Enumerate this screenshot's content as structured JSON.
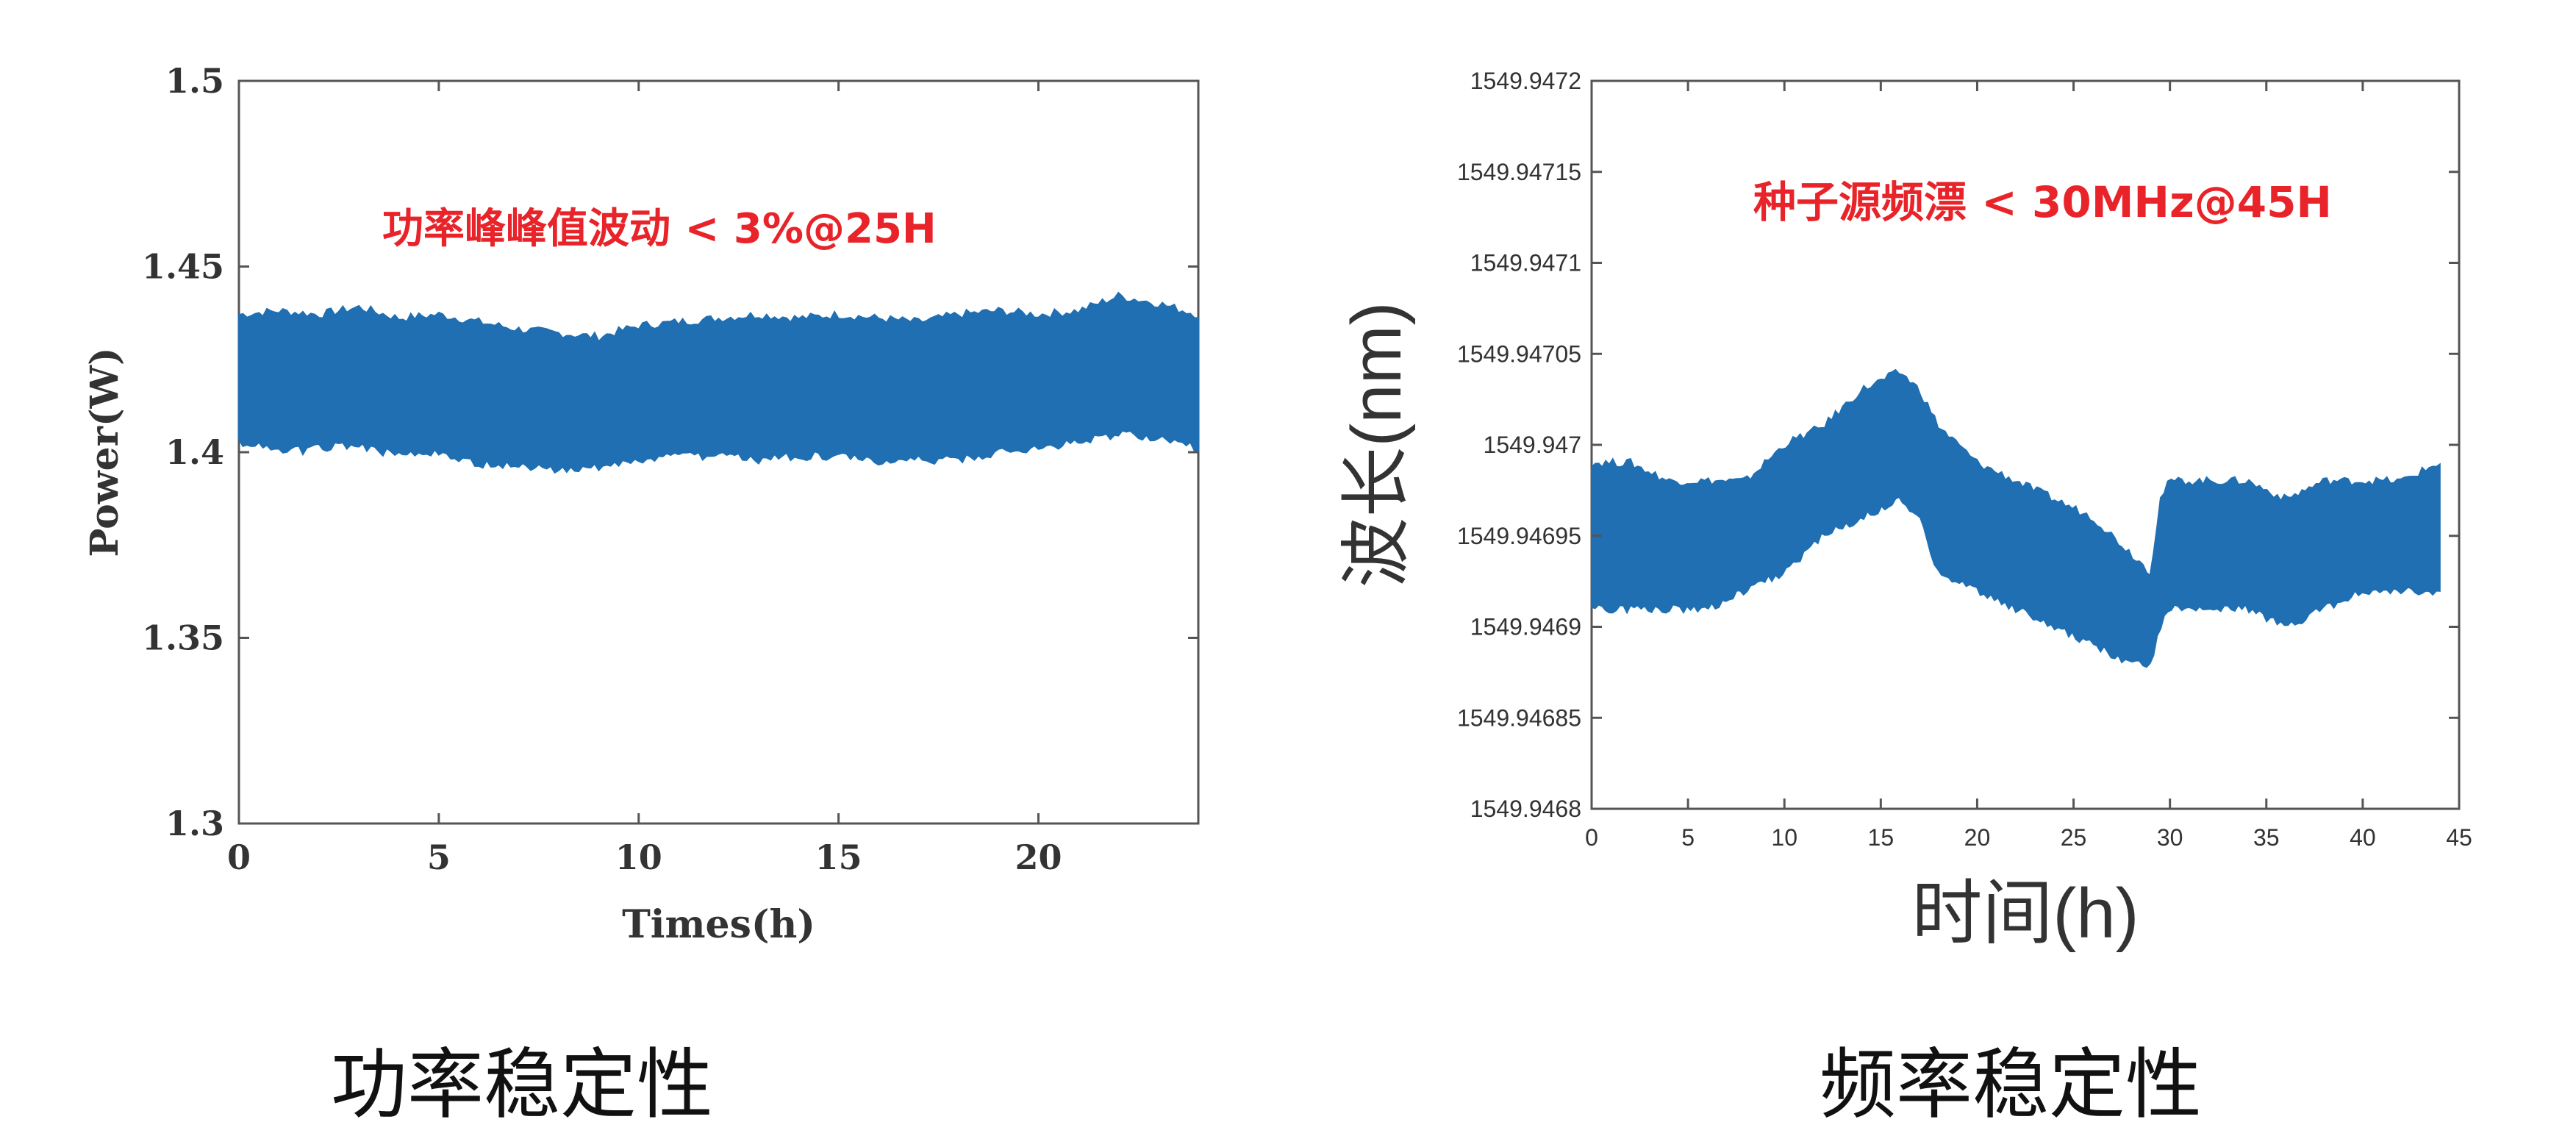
{
  "colors": {
    "series": "#1f6fb2",
    "annotation": "#e8242a",
    "axis": "#333333"
  },
  "chart_data": [
    {
      "type": "area",
      "xlabel": "Times(h)",
      "ylabel": "Power(W)",
      "annotation": "功率峰峰值波动 < 3%@25H",
      "xlim": [
        0,
        24
      ],
      "ylim": [
        1.3,
        1.5
      ],
      "xticks": [
        "0",
        "5",
        "10",
        "15",
        "20"
      ],
      "yticks": [
        "1.3",
        "1.35",
        "1.4",
        "1.45",
        "1.5"
      ],
      "caption": "功率稳定性",
      "series": [
        {
          "x": [
            0,
            1,
            2,
            3,
            4,
            5,
            6,
            7,
            8,
            9,
            10,
            11,
            12,
            13,
            14,
            15,
            16,
            17,
            18,
            19,
            20,
            21,
            22,
            23,
            24
          ],
          "upper": [
            1.437,
            1.438,
            1.437,
            1.439,
            1.436,
            1.437,
            1.435,
            1.433,
            1.432,
            1.431,
            1.434,
            1.435,
            1.436,
            1.437,
            1.436,
            1.437,
            1.436,
            1.435,
            1.437,
            1.438,
            1.437,
            1.438,
            1.442,
            1.44,
            1.437
          ],
          "lower": [
            1.403,
            1.4,
            1.401,
            1.402,
            1.399,
            1.4,
            1.397,
            1.396,
            1.395,
            1.396,
            1.398,
            1.399,
            1.399,
            1.398,
            1.399,
            1.399,
            1.397,
            1.398,
            1.398,
            1.4,
            1.401,
            1.403,
            1.405,
            1.404,
            1.401
          ]
        }
      ]
    },
    {
      "type": "area",
      "xlabel": "时间(h)",
      "ylabel": "波长(nm)",
      "annotation": "种子源频漂 < 30MHz@45H",
      "xlim": [
        0,
        45
      ],
      "ylim": [
        1549.9468,
        1549.9472
      ],
      "xticks": [
        "0",
        "5",
        "10",
        "15",
        "20",
        "25",
        "30",
        "35",
        "40",
        "45"
      ],
      "yticks": [
        "1549.9468",
        "1549.94685",
        "1549.9469",
        "1549.94695",
        "1549.947",
        "1549.94705",
        "1549.9471",
        "1549.94715",
        "1549.9472"
      ],
      "caption": "频率稳定性",
      "series": [
        {
          "x": [
            0,
            2,
            4,
            6,
            8,
            10,
            12,
            14,
            16,
            17,
            18,
            20,
            22,
            24,
            26,
            28,
            29,
            29.5,
            30,
            32,
            34,
            36,
            38,
            40,
            42,
            44
          ],
          "upper": [
            1549.94699,
            1549.94699,
            1549.94698,
            1549.94698,
            1549.94698,
            1549.947,
            1549.94701,
            1549.94703,
            1549.94704,
            1549.94703,
            1549.94701,
            1549.94699,
            1549.94698,
            1549.94697,
            1549.94696,
            1549.94694,
            1549.94693,
            1549.94697,
            1549.94698,
            1549.94698,
            1549.94698,
            1549.94697,
            1549.94698,
            1549.94698,
            1549.94698,
            1549.94699
          ],
          "lower": [
            1549.94691,
            1549.94691,
            1549.94691,
            1549.94691,
            1549.94692,
            1549.94693,
            1549.94695,
            1549.94696,
            1549.94697,
            1549.94696,
            1549.94693,
            1549.94692,
            1549.94691,
            1549.9469,
            1549.94689,
            1549.94688,
            1549.94688,
            1549.9469,
            1549.94691,
            1549.94691,
            1549.94691,
            1549.9469,
            1549.94691,
            1549.94692,
            1549.94692,
            1549.94692
          ]
        }
      ]
    }
  ]
}
